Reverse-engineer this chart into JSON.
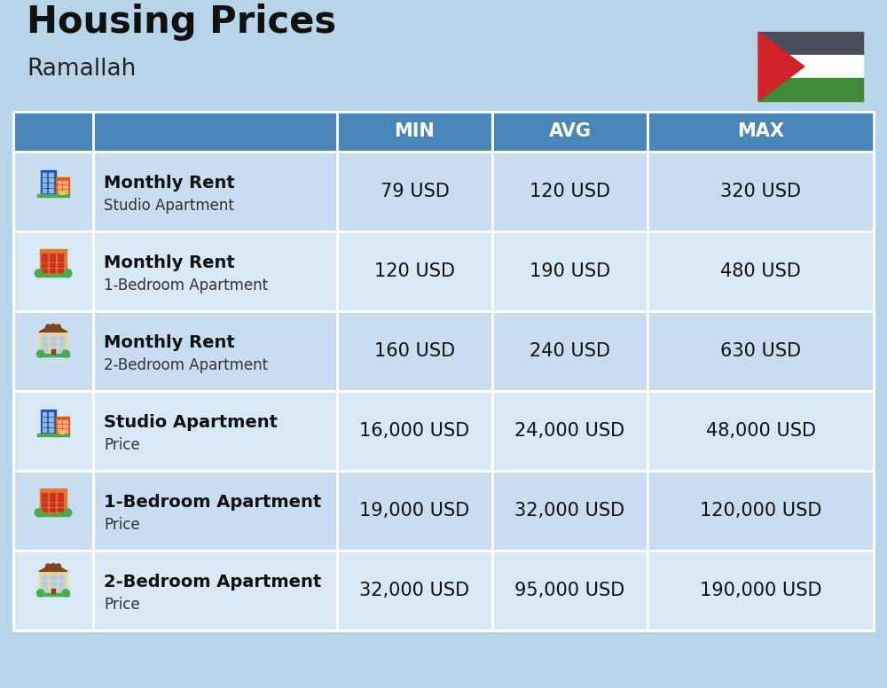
{
  "title": "Housing Prices",
  "subtitle": "Ramallah",
  "background_color": "#b8d4e8",
  "header_bg_color": "#4a86b8",
  "header_text_color": "#ffffff",
  "row_bg_even": "#c8ddef",
  "row_bg_odd": "#d8e8f4",
  "border_color": "#ffffff",
  "rows": [
    {
      "label_bold": "Monthly Rent",
      "label_sub": "Studio Apartment",
      "min": "79 USD",
      "avg": "120 USD",
      "max": "320 USD",
      "icon": "studio_blue"
    },
    {
      "label_bold": "Monthly Rent",
      "label_sub": "1-Bedroom Apartment",
      "min": "120 USD",
      "avg": "190 USD",
      "max": "480 USD",
      "icon": "one_bed_orange"
    },
    {
      "label_bold": "Monthly Rent",
      "label_sub": "2-Bedroom Apartment",
      "min": "160 USD",
      "avg": "240 USD",
      "max": "630 USD",
      "icon": "two_bed_beige"
    },
    {
      "label_bold": "Studio Apartment",
      "label_sub": "Price",
      "min": "16,000 USD",
      "avg": "24,000 USD",
      "max": "48,000 USD",
      "icon": "studio_blue"
    },
    {
      "label_bold": "1-Bedroom Apartment",
      "label_sub": "Price",
      "min": "19,000 USD",
      "avg": "32,000 USD",
      "max": "120,000 USD",
      "icon": "one_bed_orange"
    },
    {
      "label_bold": "2-Bedroom Apartment",
      "label_sub": "Price",
      "min": "32,000 USD",
      "avg": "95,000 USD",
      "max": "190,000 USD",
      "icon": "two_bed_beige"
    }
  ],
  "flag_colors": {
    "black": "#4a4e5a",
    "white": "#ffffff",
    "green": "#3d8b37",
    "red": "#d0232a"
  },
  "title_fontsize": 30,
  "subtitle_fontsize": 19,
  "header_fontsize": 15,
  "cell_fontsize": 15,
  "label_bold_fontsize": 14,
  "label_sub_fontsize": 12
}
